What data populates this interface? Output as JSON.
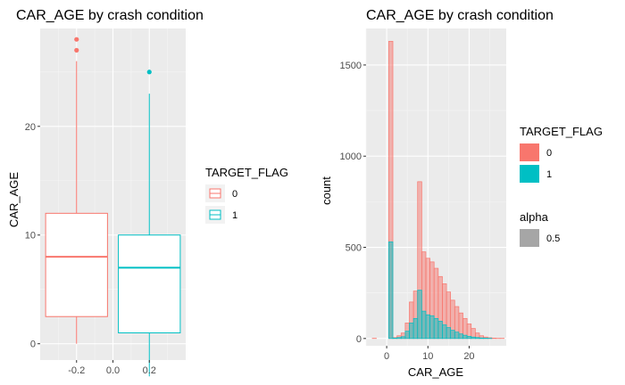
{
  "colors": {
    "zero": "#f8766d",
    "one": "#00bfc4",
    "alpha_key": "#a6a6a6",
    "panel": "#ebebeb"
  },
  "chart_data": [
    {
      "type": "box",
      "title": "CAR_AGE by crash condition",
      "ylabel": "CAR_AGE",
      "xlabel": "",
      "xlim": [
        -0.4,
        0.4
      ],
      "ylim": [
        -1.5,
        29
      ],
      "x_ticks": [
        -0.2,
        0.0,
        0.2
      ],
      "x_tick_labels": [
        "-0.2",
        "0.0",
        "0.2"
      ],
      "y_ticks": [
        0,
        10,
        20
      ],
      "y_tick_labels": [
        "0",
        "10",
        "20"
      ],
      "grid": true,
      "legend": {
        "title": "TARGET_FLAG",
        "position": "right",
        "labels": [
          "0",
          "1"
        ]
      },
      "boxes": [
        {
          "group": "0",
          "x": -0.2,
          "width": 0.34,
          "min": 0,
          "q1": 2.5,
          "median": 8,
          "q3": 12,
          "max": 26,
          "outliers": [
            27,
            28
          ]
        },
        {
          "group": "1",
          "x": 0.2,
          "width": 0.34,
          "min": -3,
          "q1": 1,
          "median": 7,
          "q3": 10,
          "max": 23,
          "outliers": [
            25
          ]
        }
      ]
    },
    {
      "type": "histogram",
      "title": "CAR_AGE by crash condition",
      "xlabel": "CAR_AGE",
      "ylabel": "count",
      "xlim": [
        -5,
        29
      ],
      "ylim": [
        -40,
        1700
      ],
      "x_ticks": [
        0,
        10,
        20
      ],
      "x_tick_labels": [
        "0",
        "10",
        "20"
      ],
      "y_ticks": [
        0,
        500,
        1000,
        1500
      ],
      "y_tick_labels": [
        "0",
        "500",
        "1000",
        "1500"
      ],
      "grid": true,
      "bin_width": 1,
      "bins": [
        -3,
        -2,
        -1,
        0,
        1,
        2,
        3,
        4,
        5,
        6,
        7,
        8,
        9,
        10,
        11,
        12,
        13,
        14,
        15,
        16,
        17,
        18,
        19,
        20,
        21,
        22,
        23,
        24,
        25,
        26,
        27,
        28
      ],
      "series": [
        {
          "name": "0",
          "values": [
            1,
            0,
            0,
            0,
            1630,
            5,
            15,
            30,
            85,
            200,
            260,
            860,
            475,
            440,
            420,
            385,
            340,
            300,
            255,
            210,
            175,
            140,
            110,
            80,
            55,
            30,
            15,
            8,
            4,
            2,
            1,
            1
          ]
        },
        {
          "name": "1",
          "values": [
            0,
            0,
            0,
            0,
            530,
            2,
            5,
            10,
            40,
            85,
            110,
            265,
            150,
            130,
            125,
            110,
            95,
            75,
            60,
            45,
            35,
            25,
            18,
            12,
            8,
            5,
            3,
            2,
            1,
            0,
            0,
            0
          ]
        }
      ],
      "legends": [
        {
          "title": "TARGET_FLAG",
          "position": "right",
          "labels": [
            "0",
            "1"
          ]
        },
        {
          "title": "alpha",
          "position": "right",
          "labels": [
            "0.5"
          ]
        }
      ]
    }
  ]
}
